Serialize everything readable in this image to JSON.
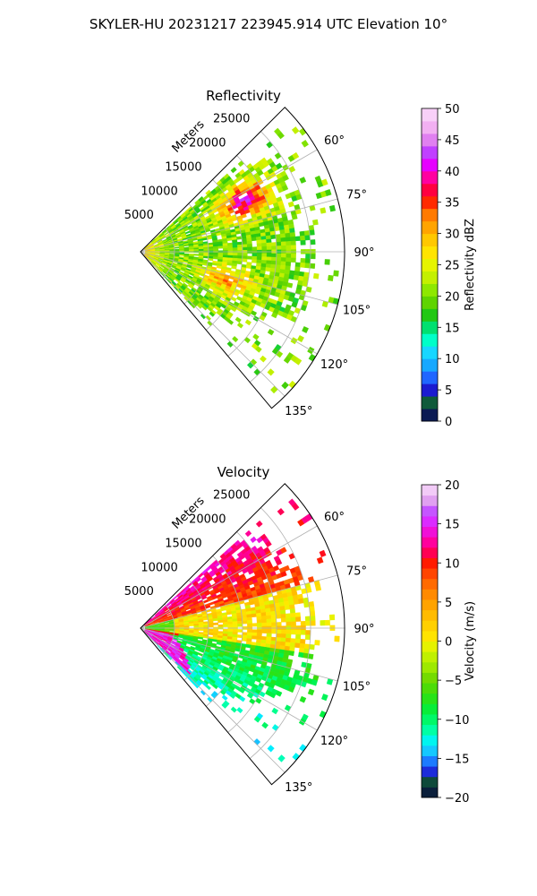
{
  "suptitle": "SKYLER-HU  20231217  223945.914 UTC Elevation 10°",
  "chart_data": [
    {
      "type": "heatmap",
      "subtype": "polar-sector-ppi",
      "title": "Reflectivity",
      "radial_label": "Meters",
      "radial_ticks": [
        5000,
        10000,
        15000,
        20000,
        25000
      ],
      "range_max": 30000,
      "theta_min": 45,
      "theta_max": 140,
      "theta_ticks": [
        "60°",
        "75°",
        "90°",
        "105°",
        "120°",
        "135°"
      ],
      "theta_tick_values": [
        60,
        75,
        90,
        105,
        120,
        135
      ],
      "grid": true,
      "colorbar": {
        "label": "Reflectivity dBZ",
        "min": 0,
        "max": 50,
        "ticks": [
          "0",
          "5",
          "10",
          "15",
          "20",
          "25",
          "30",
          "35",
          "40",
          "45",
          "50"
        ],
        "tick_values": [
          0,
          5,
          10,
          15,
          20,
          25,
          30,
          35,
          40,
          45,
          50
        ],
        "colormap": "pyart_HomeyerRainbow"
      },
      "echo_regions": [
        {
          "desc": "widespread echo",
          "range": [
            0,
            26000
          ],
          "azimuth": [
            48,
            135
          ],
          "value": 20
        },
        {
          "desc": "core",
          "range": [
            12000,
            22000
          ],
          "azimuth": [
            55,
            75
          ],
          "value": 38
        },
        {
          "desc": "band",
          "range": [
            8000,
            18000
          ],
          "azimuth": [
            95,
            120
          ],
          "value": 30
        }
      ]
    },
    {
      "type": "heatmap",
      "subtype": "polar-sector-ppi",
      "title": "Velocity",
      "radial_label": "Meters",
      "radial_ticks": [
        5000,
        10000,
        15000,
        20000,
        25000
      ],
      "range_max": 30000,
      "theta_min": 45,
      "theta_max": 140,
      "theta_ticks": [
        "60°",
        "75°",
        "90°",
        "105°",
        "120°",
        "135°"
      ],
      "theta_tick_values": [
        60,
        75,
        90,
        105,
        120,
        135
      ],
      "grid": true,
      "colorbar": {
        "label": "Velocity (m/s)",
        "min": -20,
        "max": 20,
        "ticks": [
          "−20",
          "−15",
          "−10",
          "−5",
          "0",
          "5",
          "10",
          "15",
          "20"
        ],
        "tick_values": [
          -20,
          -15,
          -10,
          -5,
          0,
          5,
          10,
          15,
          20
        ],
        "colormap": "pyart_balance"
      },
      "echo_regions": [
        {
          "desc": "outbound north",
          "range": [
            5000,
            26000
          ],
          "azimuth": [
            48,
            75
          ],
          "value": 10
        },
        {
          "desc": "near-zero center",
          "range": [
            3000,
            22000
          ],
          "azimuth": [
            75,
            98
          ],
          "value": 0
        },
        {
          "desc": "inbound south",
          "range": [
            3000,
            22000
          ],
          "azimuth": [
            100,
            135
          ],
          "value": -10
        },
        {
          "desc": "aliased near",
          "range": [
            500,
            10000
          ],
          "azimuth": [
            100,
            135
          ],
          "value": 15
        }
      ]
    }
  ]
}
